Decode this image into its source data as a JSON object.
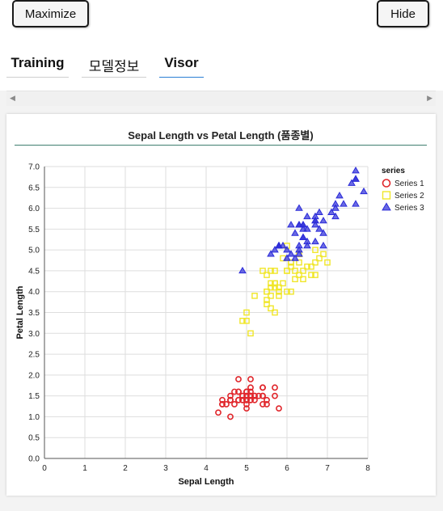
{
  "toolbar": {
    "maximize_label": "Maximize",
    "hide_label": "Hide"
  },
  "tabs": [
    {
      "label": "Training"
    },
    {
      "label": "모델정보"
    },
    {
      "label": "Visor",
      "active": true
    }
  ],
  "scrollbar": {
    "left_arrow": "◀",
    "right_arrow": "▶"
  },
  "chart_data": {
    "type": "scatter",
    "title": "Sepal Length vs Petal Length (품종별)",
    "xlabel": "Sepal Length",
    "ylabel": "Petal Length",
    "xlim": [
      0,
      8
    ],
    "ylim": [
      0,
      7
    ],
    "xticks": [
      "0",
      "1",
      "2",
      "3",
      "4",
      "5",
      "6",
      "7",
      "8"
    ],
    "yticks": [
      "0.0",
      "0.5",
      "1.0",
      "1.5",
      "2.0",
      "2.5",
      "3.0",
      "3.5",
      "4.0",
      "4.5",
      "5.0",
      "5.5",
      "6.0",
      "6.5",
      "7.0"
    ],
    "grid": true,
    "legend": {
      "title": "series",
      "placement": "right"
    },
    "series": [
      {
        "name": "Series 1",
        "marker": "circle",
        "color": "#e0262b",
        "points": [
          [
            5.1,
            1.4
          ],
          [
            4.9,
            1.4
          ],
          [
            4.7,
            1.3
          ],
          [
            4.6,
            1.5
          ],
          [
            5.0,
            1.4
          ],
          [
            5.4,
            1.7
          ],
          [
            4.6,
            1.4
          ],
          [
            5.0,
            1.5
          ],
          [
            4.4,
            1.4
          ],
          [
            4.9,
            1.5
          ],
          [
            5.4,
            1.5
          ],
          [
            4.8,
            1.6
          ],
          [
            4.8,
            1.4
          ],
          [
            4.3,
            1.1
          ],
          [
            5.8,
            1.2
          ],
          [
            5.7,
            1.5
          ],
          [
            5.4,
            1.3
          ],
          [
            5.1,
            1.4
          ],
          [
            5.7,
            1.7
          ],
          [
            5.1,
            1.5
          ],
          [
            5.4,
            1.7
          ],
          [
            5.1,
            1.5
          ],
          [
            4.6,
            1.0
          ],
          [
            5.1,
            1.7
          ],
          [
            4.8,
            1.9
          ],
          [
            5.0,
            1.6
          ],
          [
            5.0,
            1.6
          ],
          [
            5.2,
            1.5
          ],
          [
            5.2,
            1.4
          ],
          [
            4.7,
            1.6
          ],
          [
            4.8,
            1.6
          ],
          [
            5.4,
            1.5
          ],
          [
            5.2,
            1.5
          ],
          [
            5.5,
            1.4
          ],
          [
            4.9,
            1.5
          ],
          [
            5.0,
            1.2
          ],
          [
            5.5,
            1.3
          ],
          [
            4.9,
            1.4
          ],
          [
            4.4,
            1.3
          ],
          [
            5.1,
            1.5
          ],
          [
            5.0,
            1.3
          ],
          [
            4.5,
            1.3
          ],
          [
            4.4,
            1.3
          ],
          [
            5.0,
            1.6
          ],
          [
            5.1,
            1.9
          ],
          [
            4.8,
            1.4
          ],
          [
            5.1,
            1.6
          ],
          [
            4.6,
            1.4
          ],
          [
            5.3,
            1.5
          ],
          [
            5.0,
            1.4
          ]
        ]
      },
      {
        "name": "Series 2",
        "marker": "square",
        "color": "#f0e62a",
        "points": [
          [
            7.0,
            4.7
          ],
          [
            6.4,
            4.5
          ],
          [
            6.9,
            4.9
          ],
          [
            5.5,
            4.0
          ],
          [
            6.5,
            4.6
          ],
          [
            5.7,
            4.5
          ],
          [
            6.3,
            4.7
          ],
          [
            4.9,
            3.3
          ],
          [
            6.6,
            4.6
          ],
          [
            5.2,
            3.9
          ],
          [
            5.0,
            3.5
          ],
          [
            5.9,
            4.2
          ],
          [
            6.0,
            4.0
          ],
          [
            6.1,
            4.7
          ],
          [
            5.6,
            3.6
          ],
          [
            6.7,
            4.4
          ],
          [
            5.6,
            4.5
          ],
          [
            5.8,
            4.1
          ],
          [
            6.2,
            4.5
          ],
          [
            5.6,
            3.9
          ],
          [
            5.9,
            4.8
          ],
          [
            6.1,
            4.0
          ],
          [
            6.3,
            4.9
          ],
          [
            6.1,
            4.7
          ],
          [
            6.4,
            4.3
          ],
          [
            6.6,
            4.4
          ],
          [
            6.8,
            4.8
          ],
          [
            6.7,
            5.0
          ],
          [
            6.0,
            4.5
          ],
          [
            5.7,
            3.5
          ],
          [
            5.5,
            3.8
          ],
          [
            5.5,
            3.7
          ],
          [
            5.8,
            3.9
          ],
          [
            6.0,
            5.1
          ],
          [
            5.4,
            4.5
          ],
          [
            6.0,
            4.5
          ],
          [
            6.7,
            4.7
          ],
          [
            6.3,
            4.4
          ],
          [
            5.6,
            4.1
          ],
          [
            5.5,
            4.0
          ],
          [
            5.5,
            4.4
          ],
          [
            6.1,
            4.6
          ],
          [
            5.8,
            4.0
          ],
          [
            5.0,
            3.3
          ],
          [
            5.6,
            4.2
          ],
          [
            5.7,
            4.2
          ],
          [
            5.7,
            4.2
          ],
          [
            6.2,
            4.3
          ],
          [
            5.1,
            3.0
          ],
          [
            5.7,
            4.1
          ]
        ]
      },
      {
        "name": "Series 3",
        "marker": "triangle",
        "color": "#2b2bd8",
        "points": [
          [
            6.3,
            6.0
          ],
          [
            5.8,
            5.1
          ],
          [
            7.1,
            5.9
          ],
          [
            6.3,
            5.6
          ],
          [
            6.5,
            5.8
          ],
          [
            7.6,
            6.6
          ],
          [
            4.9,
            4.5
          ],
          [
            7.3,
            6.3
          ],
          [
            6.7,
            5.8
          ],
          [
            7.2,
            6.1
          ],
          [
            6.5,
            5.1
          ],
          [
            6.4,
            5.3
          ],
          [
            6.8,
            5.5
          ],
          [
            5.7,
            5.0
          ],
          [
            5.8,
            5.1
          ],
          [
            6.4,
            5.3
          ],
          [
            6.5,
            5.5
          ],
          [
            7.7,
            6.7
          ],
          [
            7.7,
            6.9
          ],
          [
            6.0,
            5.0
          ],
          [
            6.9,
            5.7
          ],
          [
            5.6,
            4.9
          ],
          [
            7.7,
            6.7
          ],
          [
            6.3,
            4.9
          ],
          [
            6.7,
            5.7
          ],
          [
            7.2,
            6.0
          ],
          [
            6.2,
            4.8
          ],
          [
            6.1,
            4.9
          ],
          [
            6.4,
            5.6
          ],
          [
            7.2,
            5.8
          ],
          [
            7.4,
            6.1
          ],
          [
            7.9,
            6.4
          ],
          [
            6.4,
            5.6
          ],
          [
            6.3,
            5.1
          ],
          [
            6.1,
            5.6
          ],
          [
            7.7,
            6.1
          ],
          [
            6.3,
            5.6
          ],
          [
            6.4,
            5.5
          ],
          [
            6.0,
            4.8
          ],
          [
            6.9,
            5.4
          ],
          [
            6.7,
            5.6
          ],
          [
            6.9,
            5.1
          ],
          [
            5.8,
            5.1
          ],
          [
            6.8,
            5.9
          ],
          [
            6.7,
            5.7
          ],
          [
            6.7,
            5.2
          ],
          [
            6.3,
            5.0
          ],
          [
            6.5,
            5.2
          ],
          [
            6.2,
            5.4
          ],
          [
            5.9,
            5.1
          ]
        ]
      }
    ]
  }
}
